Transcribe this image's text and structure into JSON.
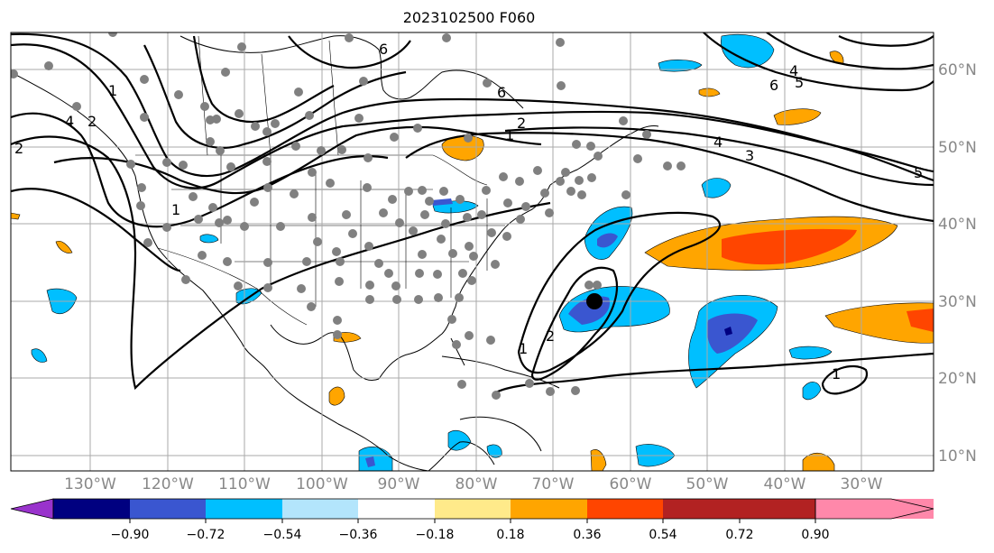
{
  "title": "2023102500 F060",
  "latitude_labels": [
    "10°N",
    "20°N",
    "30°N",
    "40°N",
    "50°N",
    "60°N"
  ],
  "longitude_labels": [
    "130°W",
    "120°W",
    "110°W",
    "100°W",
    "90°W",
    "80°W",
    "70°W",
    "60°W",
    "50°W",
    "40°W",
    "30°W"
  ],
  "contour_labels": [
    "1",
    "2",
    "4",
    "1",
    "2",
    "6",
    "2",
    "1",
    "4",
    "3",
    "5",
    "6",
    "4",
    "5",
    "1",
    "2",
    "1",
    "6"
  ],
  "colorbar": {
    "tick_labels": [
      "−0.90",
      "−0.72",
      "−0.54",
      "−0.36",
      "−0.18",
      "0.18",
      "0.36",
      "0.54",
      "0.72",
      "0.90"
    ],
    "colors": [
      "#9933cc",
      "#000080",
      "#3a56d0",
      "#00bfff",
      "#b3e5fc",
      "#ffffff",
      "#ffea8a",
      "#ffa500",
      "#ff4500",
      "#b22222",
      "#ff88aa"
    ]
  },
  "colors": {
    "ocean_fill": "#ffffff",
    "coastline": "#000000",
    "grid": "#aaaaaa",
    "station_dot": "#808080",
    "storm_center": "#000000"
  }
}
